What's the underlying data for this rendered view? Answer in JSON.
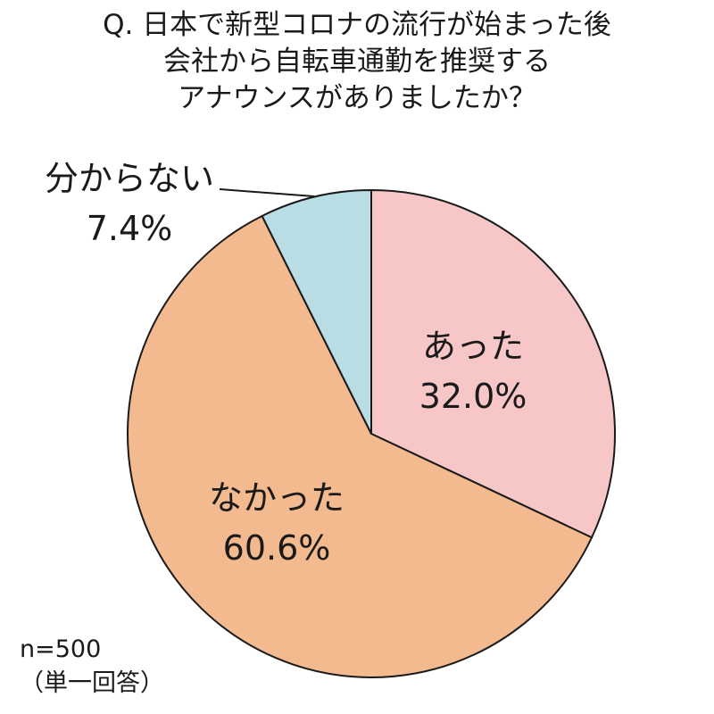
{
  "chart_data": {
    "type": "pie",
    "title_lines": [
      "Q. 日本で新型コロナの流行が始まった後",
      "会社から自転車通勤を推奨する",
      "アナウンスがありましたか？"
    ],
    "slices": [
      {
        "label": "あった",
        "value": 32.0,
        "value_text": "32.0%",
        "color": "#f7c6c7"
      },
      {
        "label": "なかった",
        "value": 60.6,
        "value_text": "60.6%",
        "color": "#f3b98f"
      },
      {
        "label": "分からない",
        "value": 7.4,
        "value_text": "7.4%",
        "color": "#b8dde4"
      }
    ],
    "start_direction": "12 o'clock, clockwise",
    "stroke_color": "#1a1a1a",
    "sample_size": "n=500",
    "answer_type": "（単一回答）"
  }
}
